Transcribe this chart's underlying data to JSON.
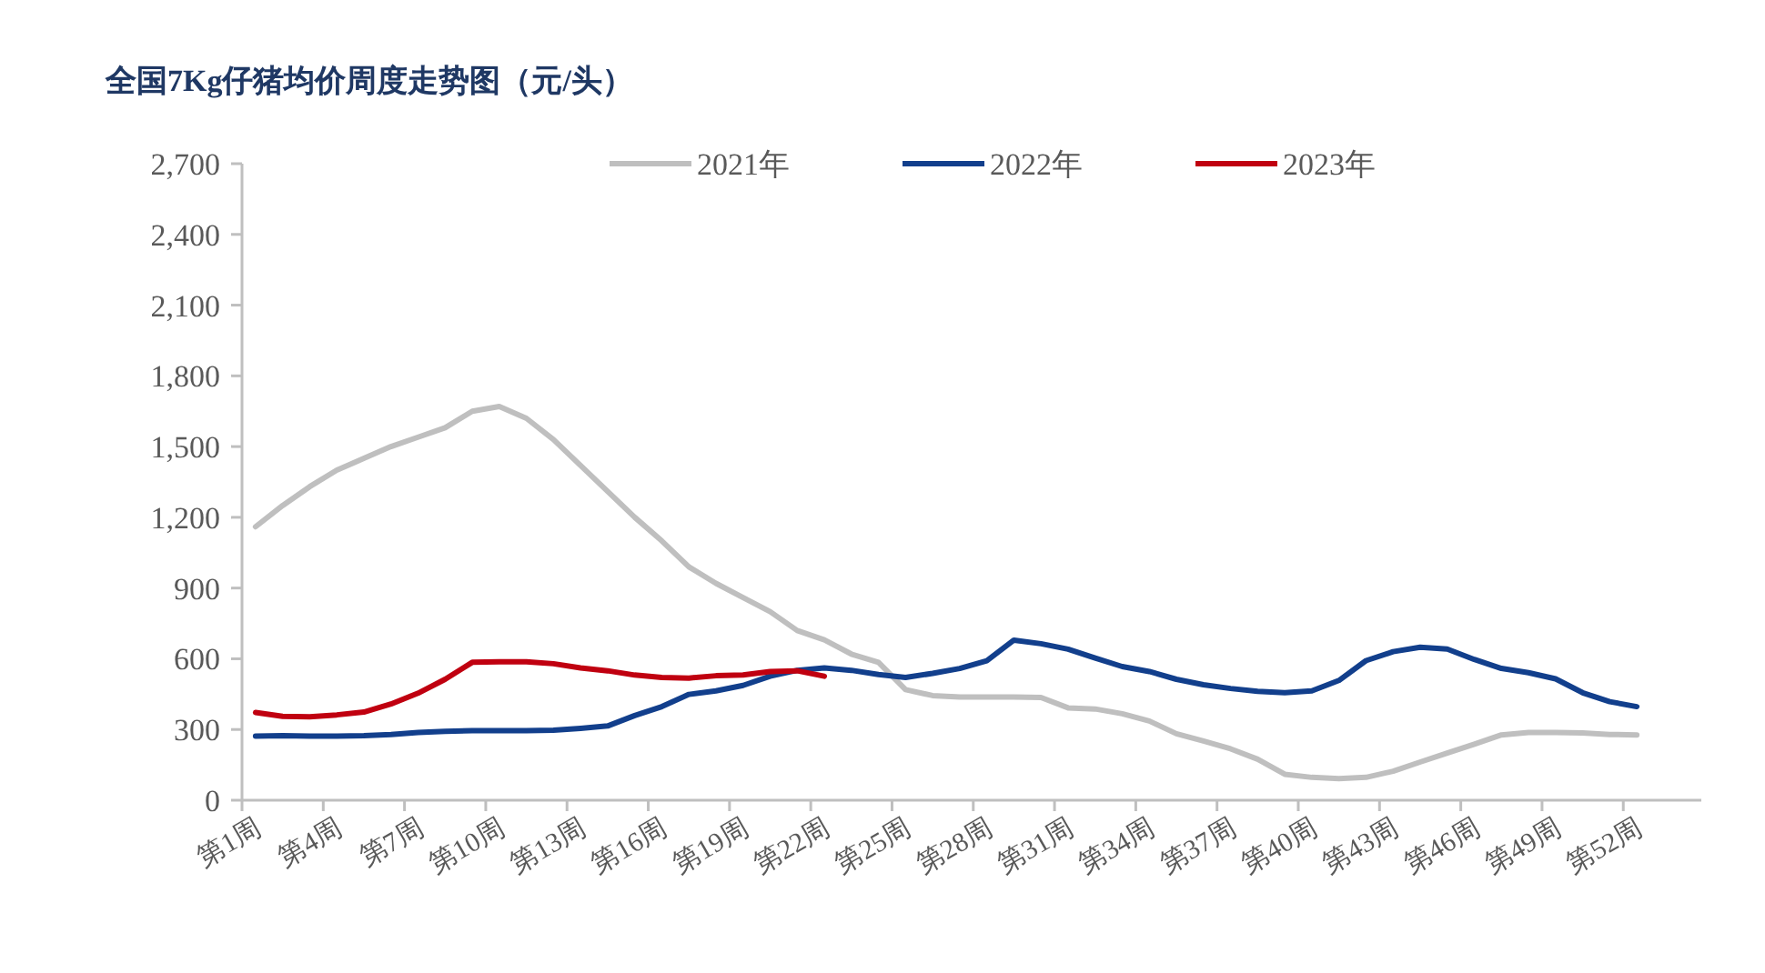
{
  "chart_data": {
    "type": "line",
    "title": "全国7Kg仔猪均价周度走势图（元/头）",
    "categories": [
      "第1周",
      null,
      null,
      "第4周",
      null,
      null,
      "第7周",
      null,
      null,
      "第10周",
      null,
      null,
      "第13周",
      null,
      null,
      "第16周",
      null,
      null,
      "第19周",
      null,
      null,
      "第22周",
      null,
      null,
      "第25周",
      null,
      null,
      "第28周",
      null,
      null,
      "第31周",
      null,
      null,
      "第34周",
      null,
      null,
      "第37周",
      null,
      null,
      "第40周",
      null,
      null,
      "第43周",
      null,
      null,
      "第46周",
      null,
      null,
      "第49周",
      null,
      null,
      "第52周"
    ],
    "series": [
      {
        "name": "2021年",
        "color": "#bfbfbf",
        "values": [
          1160,
          1250,
          1330,
          1400,
          1450,
          1500,
          1540,
          1580,
          1650,
          1670,
          1620,
          1530,
          1420,
          1310,
          1200,
          1100,
          990,
          920,
          860,
          800,
          720,
          680,
          620,
          585,
          469,
          444,
          438,
          438,
          438,
          436,
          392,
          387,
          367,
          336,
          282,
          251,
          218,
          174,
          110,
          97,
          92,
          97,
          123,
          162,
          200,
          238,
          277,
          287,
          287,
          285,
          279,
          277
        ]
      },
      {
        "name": "2022年",
        "color": "#123f8c",
        "values": [
          272,
          274,
          272,
          272,
          274,
          279,
          287,
          292,
          295,
          295,
          295,
          297,
          305,
          315,
          359,
          397,
          449,
          464,
          487,
          526,
          551,
          561,
          551,
          533,
          521,
          538,
          559,
          592,
          679,
          664,
          641,
          603,
          567,
          546,
          513,
          490,
          474,
          462,
          456,
          464,
          508,
          592,
          630,
          649,
          641,
          597,
          559,
          541,
          515,
          456,
          418,
          397
        ]
      },
      {
        "name": "2023年",
        "color": "#c00010",
        "values": [
          372,
          356,
          354,
          362,
          374,
          408,
          454,
          513,
          585,
          587,
          587,
          579,
          561,
          549,
          531,
          521,
          518,
          528,
          531,
          546,
          549,
          526,
          null,
          null,
          null,
          null,
          null,
          null,
          null,
          null,
          null,
          null,
          null,
          null,
          null,
          null,
          null,
          null,
          null,
          null,
          null,
          null,
          null,
          null,
          null,
          null,
          null,
          null,
          null,
          null,
          null,
          null
        ]
      }
    ],
    "ylim": [
      0,
      2700
    ],
    "yticks": [
      {
        "value": 0,
        "label": "0"
      },
      {
        "value": 300,
        "label": "300"
      },
      {
        "value": 600,
        "label": "600"
      },
      {
        "value": 900,
        "label": "900"
      },
      {
        "value": 1200,
        "label": "1,200"
      },
      {
        "value": 1500,
        "label": "1,500"
      },
      {
        "value": 1800,
        "label": "1,800"
      },
      {
        "value": 2100,
        "label": "2,100"
      },
      {
        "value": 2400,
        "label": "2,400"
      },
      {
        "value": 2700,
        "label": "2,700"
      }
    ],
    "legend": "top"
  }
}
